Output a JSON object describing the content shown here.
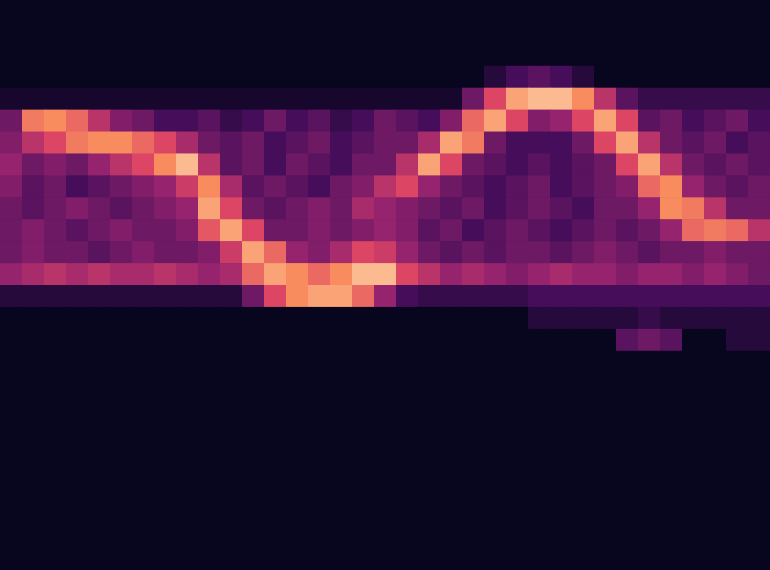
{
  "chart_data": {
    "type": "heatmap",
    "tick_labels": false,
    "cells": [
      [
        0,
        0,
        0,
        0,
        0,
        0,
        0,
        0,
        0,
        0,
        0,
        0,
        0,
        0,
        0,
        0,
        0,
        0,
        0,
        0,
        0,
        0,
        0,
        0,
        0,
        0,
        0,
        0,
        0,
        0,
        0,
        0,
        0,
        0,
        0
      ],
      [
        0,
        0,
        0,
        0,
        0,
        0,
        0,
        0,
        0,
        0,
        0,
        0,
        0,
        0,
        0,
        0,
        0,
        0,
        0,
        0,
        0,
        0,
        0,
        0,
        0,
        0,
        0,
        0,
        0,
        0,
        0,
        0,
        0,
        0,
        0
      ],
      [
        0,
        0,
        0,
        0,
        0,
        0,
        0,
        0,
        0,
        0,
        0,
        0,
        0,
        0,
        0,
        0,
        0,
        0,
        0,
        0,
        0,
        0,
        0,
        0,
        0,
        0,
        0,
        0,
        0,
        0,
        0,
        0,
        0,
        0,
        0
      ],
      [
        0,
        0,
        0,
        0,
        0,
        0,
        0,
        0,
        0,
        0,
        0,
        0,
        0,
        0,
        0,
        0,
        0,
        0,
        0,
        0,
        0,
        0,
        0.1,
        0.2,
        0.25,
        0.2,
        0.1,
        0,
        0,
        0,
        0,
        0,
        0,
        0,
        0
      ],
      [
        0.05,
        0.05,
        0.05,
        0.05,
        0.05,
        0.05,
        0.05,
        0.05,
        0.05,
        0.05,
        0.05,
        0.05,
        0.05,
        0.05,
        0.05,
        0.05,
        0.05,
        0.05,
        0.05,
        0.05,
        0.05,
        0.3,
        0.6,
        0.85,
        0.9,
        0.9,
        0.8,
        0.5,
        0.25,
        0.15,
        0.15,
        0.15,
        0.15,
        0.15,
        0.15
      ],
      [
        0.3,
        0.75,
        0.8,
        0.7,
        0.5,
        0.35,
        0.3,
        0.2,
        0.2,
        0.25,
        0.15,
        0.2,
        0.3,
        0.2,
        0.25,
        0.15,
        0.2,
        0.3,
        0.25,
        0.2,
        0.35,
        0.7,
        0.85,
        0.6,
        0.35,
        0.4,
        0.6,
        0.85,
        0.6,
        0.25,
        0.3,
        0.2,
        0.25,
        0.3,
        0.2
      ],
      [
        0.35,
        0.5,
        0.6,
        0.75,
        0.8,
        0.8,
        0.7,
        0.6,
        0.45,
        0.3,
        0.25,
        0.3,
        0.2,
        0.25,
        0.3,
        0.2,
        0.25,
        0.3,
        0.3,
        0.45,
        0.85,
        0.75,
        0.3,
        0.2,
        0.2,
        0.2,
        0.3,
        0.6,
        0.85,
        0.5,
        0.3,
        0.25,
        0.3,
        0.2,
        0.25
      ],
      [
        0.4,
        0.3,
        0.35,
        0.3,
        0.4,
        0.5,
        0.6,
        0.8,
        0.9,
        0.5,
        0.25,
        0.3,
        0.2,
        0.3,
        0.25,
        0.2,
        0.3,
        0.3,
        0.5,
        0.85,
        0.6,
        0.3,
        0.25,
        0.2,
        0.25,
        0.2,
        0.25,
        0.3,
        0.6,
        0.85,
        0.5,
        0.3,
        0.25,
        0.3,
        0.25
      ],
      [
        0.35,
        0.25,
        0.3,
        0.2,
        0.25,
        0.3,
        0.35,
        0.4,
        0.55,
        0.8,
        0.45,
        0.25,
        0.3,
        0.25,
        0.2,
        0.3,
        0.35,
        0.5,
        0.6,
        0.4,
        0.3,
        0.25,
        0.2,
        0.25,
        0.3,
        0.2,
        0.25,
        0.3,
        0.35,
        0.7,
        0.8,
        0.4,
        0.3,
        0.25,
        0.3
      ],
      [
        0.3,
        0.25,
        0.3,
        0.35,
        0.3,
        0.25,
        0.3,
        0.35,
        0.4,
        0.85,
        0.6,
        0.3,
        0.25,
        0.3,
        0.35,
        0.3,
        0.45,
        0.4,
        0.35,
        0.3,
        0.25,
        0.3,
        0.2,
        0.25,
        0.3,
        0.25,
        0.2,
        0.3,
        0.3,
        0.4,
        0.8,
        0.75,
        0.5,
        0.3,
        0.3
      ],
      [
        0.3,
        0.35,
        0.3,
        0.25,
        0.3,
        0.35,
        0.3,
        0.3,
        0.35,
        0.65,
        0.85,
        0.6,
        0.3,
        0.3,
        0.35,
        0.3,
        0.35,
        0.4,
        0.35,
        0.25,
        0.3,
        0.2,
        0.25,
        0.3,
        0.25,
        0.2,
        0.25,
        0.3,
        0.25,
        0.3,
        0.4,
        0.7,
        0.75,
        0.7,
        0.5
      ],
      [
        0.3,
        0.35,
        0.3,
        0.3,
        0.25,
        0.3,
        0.35,
        0.3,
        0.3,
        0.35,
        0.55,
        0.85,
        0.7,
        0.4,
        0.35,
        0.45,
        0.6,
        0.55,
        0.4,
        0.3,
        0.25,
        0.3,
        0.25,
        0.3,
        0.3,
        0.25,
        0.3,
        0.35,
        0.3,
        0.25,
        0.3,
        0.3,
        0.35,
        0.3,
        0.3
      ],
      [
        0.4,
        0.45,
        0.5,
        0.45,
        0.5,
        0.45,
        0.45,
        0.5,
        0.45,
        0.4,
        0.45,
        0.7,
        0.85,
        0.8,
        0.7,
        0.8,
        0.9,
        0.9,
        0.6,
        0.5,
        0.4,
        0.45,
        0.4,
        0.35,
        0.4,
        0.45,
        0.4,
        0.4,
        0.35,
        0.4,
        0.4,
        0.35,
        0.4,
        0.35,
        0.3
      ],
      [
        0.1,
        0.1,
        0.1,
        0.1,
        0.1,
        0.1,
        0.1,
        0.1,
        0.1,
        0.1,
        0.1,
        0.3,
        0.6,
        0.8,
        0.85,
        0.85,
        0.7,
        0.4,
        0.2,
        0.15,
        0.15,
        0.15,
        0.15,
        0.15,
        0.2,
        0.2,
        0.2,
        0.2,
        0.2,
        0.2,
        0.2,
        0.2,
        0.2,
        0.2,
        0.2
      ],
      [
        0,
        0,
        0,
        0,
        0,
        0,
        0,
        0,
        0,
        0,
        0,
        0,
        0,
        0,
        0,
        0,
        0,
        0,
        0,
        0,
        0,
        0,
        0,
        0,
        0.1,
        0.1,
        0.1,
        0.1,
        0.1,
        0.15,
        0.1,
        0.1,
        0.1,
        0.1,
        0.1
      ],
      [
        0,
        0,
        0,
        0,
        0,
        0,
        0,
        0,
        0,
        0,
        0,
        0,
        0,
        0,
        0,
        0,
        0,
        0,
        0,
        0,
        0,
        0,
        0,
        0,
        0,
        0,
        0,
        0,
        0.25,
        0.3,
        0.25,
        0,
        0,
        0.1,
        0.1
      ],
      [
        0,
        0,
        0,
        0,
        0,
        0,
        0,
        0,
        0,
        0,
        0,
        0,
        0,
        0,
        0,
        0,
        0,
        0,
        0,
        0,
        0,
        0,
        0,
        0,
        0,
        0,
        0,
        0,
        0,
        0,
        0,
        0,
        0,
        0,
        0
      ],
      [
        0,
        0,
        0,
        0,
        0,
        0,
        0,
        0,
        0,
        0,
        0,
        0,
        0,
        0,
        0,
        0,
        0,
        0,
        0,
        0,
        0,
        0,
        0,
        0,
        0,
        0,
        0,
        0,
        0,
        0,
        0,
        0,
        0,
        0,
        0
      ],
      [
        0,
        0,
        0,
        0,
        0,
        0,
        0,
        0,
        0,
        0,
        0,
        0,
        0,
        0,
        0,
        0,
        0,
        0,
        0,
        0,
        0,
        0,
        0,
        0,
        0,
        0,
        0,
        0,
        0,
        0,
        0,
        0,
        0,
        0,
        0
      ],
      [
        0,
        0,
        0,
        0,
        0,
        0,
        0,
        0,
        0,
        0,
        0,
        0,
        0,
        0,
        0,
        0,
        0,
        0,
        0,
        0,
        0,
        0,
        0,
        0,
        0,
        0,
        0,
        0,
        0,
        0,
        0,
        0,
        0,
        0,
        0
      ],
      [
        0,
        0,
        0,
        0,
        0,
        0,
        0,
        0,
        0,
        0,
        0,
        0,
        0,
        0,
        0,
        0,
        0,
        0,
        0,
        0,
        0,
        0,
        0,
        0,
        0,
        0,
        0,
        0,
        0,
        0,
        0,
        0,
        0,
        0,
        0
      ],
      [
        0,
        0,
        0,
        0,
        0,
        0,
        0,
        0,
        0,
        0,
        0,
        0,
        0,
        0,
        0,
        0,
        0,
        0,
        0,
        0,
        0,
        0,
        0,
        0,
        0,
        0,
        0,
        0,
        0,
        0,
        0,
        0,
        0,
        0,
        0
      ],
      [
        0,
        0,
        0,
        0,
        0,
        0,
        0,
        0,
        0,
        0,
        0,
        0,
        0,
        0,
        0,
        0,
        0,
        0,
        0,
        0,
        0,
        0,
        0,
        0,
        0,
        0,
        0,
        0,
        0,
        0,
        0,
        0,
        0,
        0,
        0
      ],
      [
        0,
        0,
        0,
        0,
        0,
        0,
        0,
        0,
        0,
        0,
        0,
        0,
        0,
        0,
        0,
        0,
        0,
        0,
        0,
        0,
        0,
        0,
        0,
        0,
        0,
        0,
        0,
        0,
        0,
        0,
        0,
        0,
        0,
        0,
        0
      ],
      [
        0,
        0,
        0,
        0,
        0,
        0,
        0,
        0,
        0,
        0,
        0,
        0,
        0,
        0,
        0,
        0,
        0,
        0,
        0,
        0,
        0,
        0,
        0,
        0,
        0,
        0,
        0,
        0,
        0,
        0,
        0,
        0,
        0,
        0,
        0
      ],
      [
        0,
        0,
        0,
        0,
        0,
        0,
        0,
        0,
        0,
        0,
        0,
        0,
        0,
        0,
        0,
        0,
        0,
        0,
        0,
        0,
        0,
        0,
        0,
        0,
        0,
        0,
        0,
        0,
        0,
        0,
        0,
        0,
        0,
        0,
        0
      ]
    ]
  }
}
